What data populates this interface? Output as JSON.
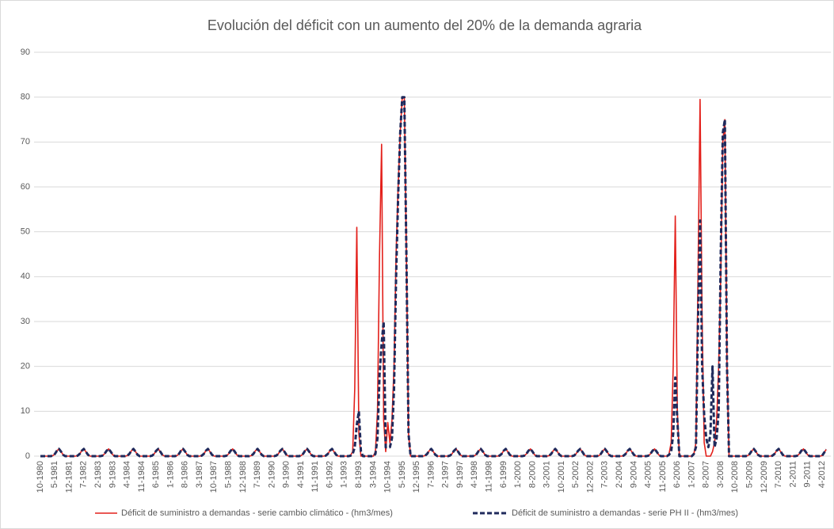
{
  "chart_data": {
    "type": "line",
    "title": "Evolución del déficit con un aumento del 20% de la demanda agraria",
    "categories": [
      "10-1980",
      null,
      null,
      null,
      null,
      null,
      null,
      "5-1981",
      null,
      null,
      null,
      null,
      null,
      null,
      "12-1981",
      null,
      null,
      null,
      null,
      null,
      null,
      "7-1982",
      null,
      null,
      null,
      null,
      null,
      null,
      "2-1983",
      null,
      null,
      null,
      null,
      null,
      null,
      "9-1983",
      null,
      null,
      null,
      null,
      null,
      null,
      "4-1984",
      null,
      null,
      null,
      null,
      null,
      null,
      "11-1984",
      null,
      null,
      null,
      null,
      null,
      null,
      "6-1985",
      null,
      null,
      null,
      null,
      null,
      null,
      "1-1986",
      null,
      null,
      null,
      null,
      null,
      null,
      "8-1986",
      null,
      null,
      null,
      null,
      null,
      null,
      "3-1987",
      null,
      null,
      null,
      null,
      null,
      null,
      "10-1987",
      null,
      null,
      null,
      null,
      null,
      null,
      "5-1988",
      null,
      null,
      null,
      null,
      null,
      null,
      "12-1988",
      null,
      null,
      null,
      null,
      null,
      null,
      "7-1989",
      null,
      null,
      null,
      null,
      null,
      null,
      "2-1990",
      null,
      null,
      null,
      null,
      null,
      null,
      "9-1990",
      null,
      null,
      null,
      null,
      null,
      null,
      "4-1991",
      null,
      null,
      null,
      null,
      null,
      null,
      "11-1991",
      null,
      null,
      null,
      null,
      null,
      null,
      "6-1992",
      null,
      null,
      null,
      null,
      null,
      null,
      "1-1993",
      null,
      null,
      null,
      null,
      null,
      null,
      "8-1993",
      null,
      null,
      null,
      null,
      null,
      null,
      "3-1994",
      null,
      null,
      null,
      null,
      null,
      null,
      "10-1994",
      null,
      null,
      null,
      null,
      null,
      null,
      "5-1995",
      null,
      null,
      null,
      null,
      null,
      null,
      "12-1995",
      null,
      null,
      null,
      null,
      null,
      null,
      "7-1996",
      null,
      null,
      null,
      null,
      null,
      null,
      "2-1997",
      null,
      null,
      null,
      null,
      null,
      null,
      "9-1997",
      null,
      null,
      null,
      null,
      null,
      null,
      "4-1998",
      null,
      null,
      null,
      null,
      null,
      null,
      "11-1998",
      null,
      null,
      null,
      null,
      null,
      null,
      "6-1999",
      null,
      null,
      null,
      null,
      null,
      null,
      "1-2000",
      null,
      null,
      null,
      null,
      null,
      null,
      "8-2000",
      null,
      null,
      null,
      null,
      null,
      null,
      "3-2001",
      null,
      null,
      null,
      null,
      null,
      null,
      "10-2001",
      null,
      null,
      null,
      null,
      null,
      null,
      "5-2002",
      null,
      null,
      null,
      null,
      null,
      null,
      "12-2002",
      null,
      null,
      null,
      null,
      null,
      null,
      "7-2003",
      null,
      null,
      null,
      null,
      null,
      null,
      "2-2004",
      null,
      null,
      null,
      null,
      null,
      null,
      "9-2004",
      null,
      null,
      null,
      null,
      null,
      null,
      "4-2005",
      null,
      null,
      null,
      null,
      null,
      null,
      "11-2005",
      null,
      null,
      null,
      null,
      null,
      null,
      "6-2006",
      null,
      null,
      null,
      null,
      null,
      null,
      "1-2007",
      null,
      null,
      null,
      null,
      null,
      null,
      "8-2007",
      null,
      null,
      null,
      null,
      null,
      null,
      "3-2008",
      null,
      null,
      null,
      null,
      null,
      null,
      "10-2008",
      null,
      null,
      null,
      null,
      null,
      null,
      "5-2009",
      null,
      null,
      null,
      null,
      null,
      null,
      "12-2009",
      null,
      null,
      null,
      null,
      null,
      null,
      "7-2010",
      null,
      null,
      null,
      null,
      null,
      null,
      "2-2011",
      null,
      null,
      null,
      null,
      null,
      null,
      "9-2011",
      null,
      null,
      null,
      null,
      null,
      null,
      "4-2012",
      null,
      null
    ],
    "series": [
      {
        "name": "Déficit de suministro a demandas - serie cambio climático - (hm3/mes)",
        "color": "#e3201b",
        "dashed": false,
        "values": [
          0,
          0,
          0,
          0,
          0,
          0,
          0.1,
          0.5,
          1.2,
          1.6,
          1,
          0.3,
          0,
          0,
          0,
          0,
          0,
          0,
          0.1,
          0.5,
          1.2,
          1.6,
          1,
          0.3,
          0,
          0,
          0,
          0,
          0,
          0,
          0.1,
          0.5,
          1.2,
          1.6,
          1,
          0.3,
          0,
          0,
          0,
          0,
          0,
          0,
          0.1,
          0.5,
          1.2,
          1.6,
          1,
          0.3,
          0,
          0,
          0,
          0,
          0,
          0,
          0.1,
          0.5,
          1.2,
          1.6,
          1,
          0.3,
          0,
          0,
          0,
          0,
          0,
          0,
          0.1,
          0.5,
          1.2,
          1.6,
          1,
          0.3,
          0,
          0,
          0,
          0,
          0,
          0,
          0.1,
          0.5,
          1.2,
          1.6,
          1,
          0.3,
          0,
          0,
          0,
          0,
          0,
          0,
          0.1,
          0.5,
          1.2,
          1.6,
          1,
          0.3,
          0,
          0,
          0,
          0,
          0,
          0,
          0.1,
          0.5,
          1.2,
          1.6,
          1,
          0.3,
          0,
          0,
          0,
          0,
          0,
          0,
          0.1,
          0.5,
          1.2,
          1.6,
          1,
          0.3,
          0,
          0,
          0,
          0,
          0,
          0,
          0.1,
          0.5,
          1.2,
          1.6,
          1,
          0.3,
          0,
          0,
          0,
          0,
          0,
          0,
          0.1,
          0.5,
          1.2,
          1.6,
          1,
          0.3,
          0,
          0,
          0,
          0,
          0,
          0,
          0.2,
          1,
          15,
          51,
          5,
          0,
          0,
          0,
          0,
          0,
          0,
          0,
          1,
          10,
          45,
          69.5,
          8,
          1,
          7.5,
          3,
          8,
          20,
          45,
          60,
          72,
          80,
          80,
          45,
          5,
          0,
          0,
          0,
          0,
          0,
          0,
          0,
          0.1,
          0.5,
          1.2,
          1.6,
          1,
          0.3,
          0,
          0,
          0,
          0,
          0,
          0,
          0.1,
          0.5,
          1.2,
          1.6,
          1,
          0.3,
          0,
          0,
          0,
          0,
          0,
          0,
          0.1,
          0.5,
          1.2,
          1.6,
          1,
          0.3,
          0,
          0,
          0,
          0,
          0,
          0,
          0.1,
          0.5,
          1.2,
          1.6,
          1,
          0.3,
          0,
          0,
          0,
          0,
          0,
          0,
          0.1,
          0.5,
          1.2,
          1.6,
          1,
          0.3,
          0,
          0,
          0,
          0,
          0,
          0,
          0.1,
          0.5,
          1.2,
          1.6,
          1,
          0.3,
          0,
          0,
          0,
          0,
          0,
          0,
          0.1,
          0.5,
          1.2,
          1.6,
          1,
          0.3,
          0,
          0,
          0,
          0,
          0,
          0,
          0.1,
          0.5,
          1.2,
          1.6,
          1,
          0.3,
          0,
          0,
          0,
          0,
          0,
          0,
          0.1,
          0.5,
          1.2,
          1.6,
          1,
          0.3,
          0,
          0,
          0,
          0,
          0,
          0,
          0.1,
          0.5,
          1.2,
          1.6,
          1,
          0.3,
          0,
          0,
          0,
          0,
          0.5,
          3,
          20,
          53.5,
          10,
          0,
          0,
          0,
          0,
          0,
          0,
          0,
          0.5,
          3,
          40,
          79.5,
          30,
          3,
          0,
          0,
          0,
          1,
          3,
          8,
          20,
          40,
          70,
          75,
          20,
          0,
          0,
          0,
          0,
          0,
          0,
          0,
          0,
          0,
          0.1,
          0.5,
          1.2,
          1.6,
          1,
          0.3,
          0,
          0,
          0,
          0,
          0,
          0,
          0.1,
          0.5,
          1.2,
          1.6,
          1,
          0.3,
          0,
          0,
          0,
          0,
          0,
          0,
          0.1,
          0.5,
          1.2,
          1.6,
          1,
          0.3,
          0,
          0,
          0,
          0,
          0,
          0,
          0.1,
          0.8,
          1.5
        ]
      },
      {
        "name": "Déficit de suministro a demandas - serie PH II - (hm3/mes)",
        "color": "#1f2a5c",
        "dashed": true,
        "values": [
          0,
          0,
          0,
          0,
          0,
          0,
          0.1,
          0.5,
          1.2,
          1.6,
          1,
          0.3,
          0,
          0,
          0,
          0,
          0,
          0,
          0.1,
          0.5,
          1.2,
          1.6,
          1,
          0.3,
          0,
          0,
          0,
          0,
          0,
          0,
          0.1,
          0.5,
          1.2,
          1.6,
          1,
          0.3,
          0,
          0,
          0,
          0,
          0,
          0,
          0.1,
          0.5,
          1.2,
          1.6,
          1,
          0.3,
          0,
          0,
          0,
          0,
          0,
          0,
          0.1,
          0.5,
          1.2,
          1.6,
          1,
          0.3,
          0,
          0,
          0,
          0,
          0,
          0,
          0.1,
          0.5,
          1.2,
          1.6,
          1,
          0.3,
          0,
          0,
          0,
          0,
          0,
          0,
          0.1,
          0.5,
          1.2,
          1.6,
          1,
          0.3,
          0,
          0,
          0,
          0,
          0,
          0,
          0.1,
          0.5,
          1.2,
          1.6,
          1,
          0.3,
          0,
          0,
          0,
          0,
          0,
          0,
          0.1,
          0.5,
          1.2,
          1.6,
          1,
          0.3,
          0,
          0,
          0,
          0,
          0,
          0,
          0.1,
          0.5,
          1.2,
          1.6,
          1,
          0.3,
          0,
          0,
          0,
          0,
          0,
          0,
          0.1,
          0.5,
          1.2,
          1.6,
          1,
          0.3,
          0,
          0,
          0,
          0,
          0,
          0,
          0.1,
          0.5,
          1.2,
          1.6,
          1,
          0.3,
          0,
          0,
          0,
          0,
          0,
          0,
          0.1,
          0.5,
          2,
          7,
          10,
          1,
          0,
          0,
          0,
          0,
          0,
          0,
          0.5,
          4,
          18,
          25,
          30,
          2,
          2,
          2,
          4,
          15,
          40,
          58,
          72,
          80,
          80,
          45,
          5,
          0,
          0,
          0,
          0,
          0,
          0,
          0,
          0.1,
          0.5,
          1.2,
          1.6,
          1,
          0.3,
          0,
          0,
          0,
          0,
          0,
          0,
          0.1,
          0.5,
          1.2,
          1.6,
          1,
          0.3,
          0,
          0,
          0,
          0,
          0,
          0,
          0.1,
          0.5,
          1.2,
          1.6,
          1,
          0.3,
          0,
          0,
          0,
          0,
          0,
          0,
          0.1,
          0.5,
          1.2,
          1.6,
          1,
          0.3,
          0,
          0,
          0,
          0,
          0,
          0,
          0.1,
          0.5,
          1.2,
          1.6,
          1,
          0.3,
          0,
          0,
          0,
          0,
          0,
          0,
          0.1,
          0.5,
          1.2,
          1.6,
          1,
          0.3,
          0,
          0,
          0,
          0,
          0,
          0,
          0.1,
          0.5,
          1.2,
          1.6,
          1,
          0.3,
          0,
          0,
          0,
          0,
          0,
          0,
          0.1,
          0.5,
          1.2,
          1.6,
          1,
          0.3,
          0,
          0,
          0,
          0,
          0,
          0,
          0.1,
          0.5,
          1.2,
          1.6,
          1,
          0.3,
          0,
          0,
          0,
          0,
          0,
          0,
          0.1,
          0.5,
          1.2,
          1.6,
          1,
          0.3,
          0,
          0,
          0,
          0,
          0.3,
          1,
          5,
          17.5,
          8,
          0,
          0,
          0,
          0,
          0,
          0,
          0,
          0.5,
          2,
          30,
          52.5,
          20,
          9,
          4,
          2,
          5,
          20,
          2,
          4,
          10,
          45,
          72,
          75,
          20,
          0,
          0,
          0,
          0,
          0,
          0,
          0,
          0,
          0,
          0.1,
          0.5,
          1.2,
          1.6,
          1,
          0.3,
          0,
          0,
          0,
          0,
          0,
          0,
          0.1,
          0.5,
          1.2,
          1.6,
          1,
          0.3,
          0,
          0,
          0,
          0,
          0,
          0,
          0.1,
          0.5,
          1.2,
          1.6,
          1,
          0.3,
          0,
          0,
          0,
          0,
          0,
          0,
          0.1,
          0.8,
          1.5
        ]
      }
    ],
    "ylim": [
      0,
      90
    ],
    "yticks": [
      0,
      10,
      20,
      30,
      40,
      50,
      60,
      70,
      80,
      90
    ],
    "grid": true,
    "legend": "bottom"
  }
}
